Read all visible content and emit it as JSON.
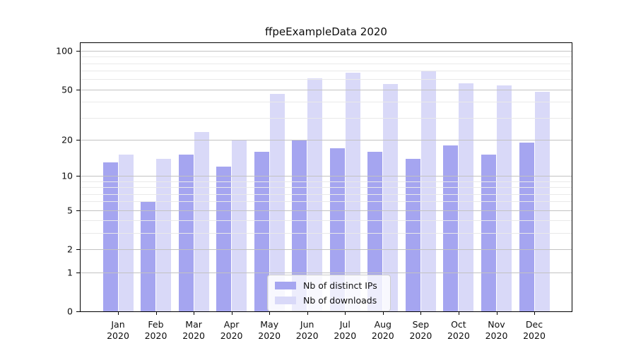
{
  "chart_data": {
    "type": "bar",
    "title": "ffpeExampleData 2020",
    "categories": [
      "Jan",
      "Feb",
      "Mar",
      "Apr",
      "May",
      "Jun",
      "Jul",
      "Aug",
      "Sep",
      "Oct",
      "Nov",
      "Dec"
    ],
    "category_year": "2020",
    "series": [
      {
        "name": "Nb of distinct IPs",
        "color": "#a5a5f0",
        "values": [
          13,
          6,
          15,
          12,
          16,
          20,
          17,
          16,
          14,
          18,
          15,
          19
        ]
      },
      {
        "name": "Nb of downloads",
        "color": "#d9d9f8",
        "values": [
          15,
          14,
          23,
          20,
          46,
          61,
          68,
          55,
          70,
          56,
          54,
          48
        ]
      }
    ],
    "xlabel": "",
    "ylabel": "",
    "yscale": "log1p",
    "ylim": [
      0,
      115
    ],
    "yticks": [
      0,
      1,
      2,
      5,
      10,
      20,
      50,
      100
    ],
    "yticks_minor": [
      3,
      4,
      6,
      7,
      8,
      9,
      30,
      40,
      60,
      70,
      80,
      90
    ],
    "grid": "on, drawn over bars",
    "legend_position": "lower-center"
  },
  "colors": {
    "major_grid": "#c2c2c2",
    "minor_grid": "#e9e9e9",
    "spine": "#000000",
    "text": "#0d0d0d"
  }
}
